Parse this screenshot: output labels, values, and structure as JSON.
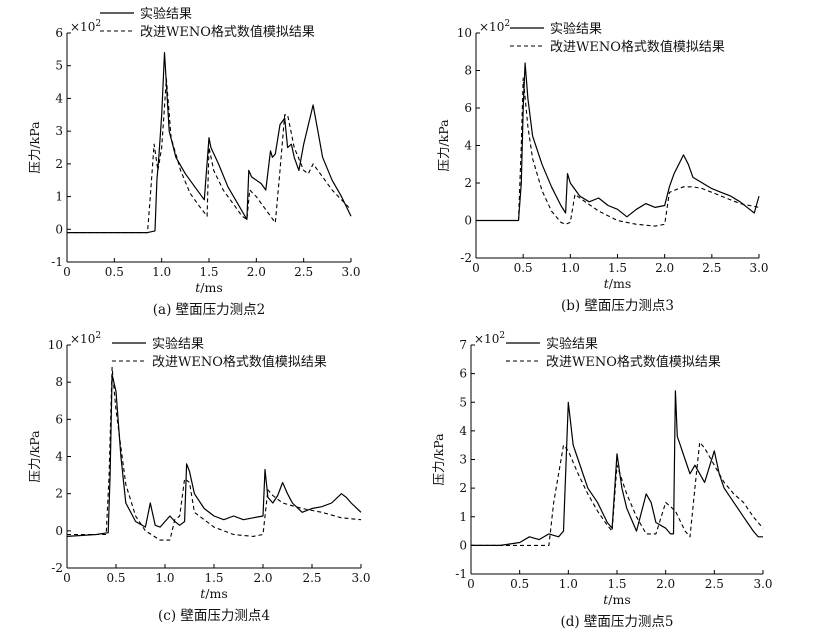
{
  "figure": {
    "legend": {
      "experiment": "实验结果",
      "simulation": "改进WENO格式数值模拟结果"
    },
    "y_multiplier": "×10",
    "y_multiplier_exp": "2"
  },
  "chart_data": [
    {
      "type": "line",
      "caption": "(a) 壁面压力测点2",
      "xlabel": "t/ms",
      "ylabel": "压力/kPa",
      "xlim": [
        0,
        3.0
      ],
      "ylim": [
        -1,
        6
      ],
      "xticks": [
        "0",
        "0.5",
        "1.0",
        "1.5",
        "2.0",
        "2.5",
        "3.0"
      ],
      "yticks": [
        "-1",
        "0",
        "1",
        "2",
        "3",
        "4",
        "5",
        "6"
      ],
      "legend_placement": "top",
      "series": [
        {
          "name": "实验结果",
          "style": "solid",
          "x": [
            0,
            0.3,
            0.6,
            0.85,
            0.93,
            0.95,
            0.97,
            1.0,
            1.03,
            1.08,
            1.15,
            1.25,
            1.35,
            1.45,
            1.5,
            1.52,
            1.6,
            1.7,
            1.8,
            1.9,
            1.92,
            1.95,
            2.05,
            2.1,
            2.15,
            2.17,
            2.2,
            2.25,
            2.3,
            2.33,
            2.37,
            2.4,
            2.45,
            2.5,
            2.55,
            2.6,
            2.65,
            2.7,
            2.8,
            2.9,
            3.0
          ],
          "y": [
            -0.1,
            -0.1,
            -0.1,
            -0.1,
            -0.05,
            1.5,
            2.2,
            3.5,
            5.4,
            3.0,
            2.2,
            1.7,
            1.3,
            0.9,
            2.8,
            2.5,
            2.0,
            1.3,
            0.8,
            0.3,
            1.8,
            1.6,
            1.4,
            1.2,
            2.4,
            2.2,
            2.3,
            3.2,
            3.4,
            2.5,
            2.6,
            2.2,
            1.8,
            2.6,
            3.2,
            3.8,
            3.0,
            2.2,
            1.5,
            1.0,
            0.4
          ]
        },
        {
          "name": "改进WENO格式数值模拟结果",
          "style": "dashed",
          "x": [
            0,
            0.85,
            0.88,
            0.92,
            0.96,
            1.0,
            1.05,
            1.1,
            1.2,
            1.3,
            1.4,
            1.48,
            1.5,
            1.55,
            1.65,
            1.75,
            1.85,
            1.9,
            1.93,
            2.0,
            2.1,
            2.2,
            2.25,
            2.3,
            2.33,
            2.4,
            2.5,
            2.55,
            2.6,
            2.7,
            2.8,
            2.9,
            3.0
          ],
          "y": [
            -0.1,
            -0.1,
            1.0,
            2.6,
            1.8,
            2.5,
            4.6,
            2.8,
            1.8,
            1.1,
            0.7,
            0.4,
            2.5,
            1.8,
            1.2,
            0.8,
            0.4,
            0.3,
            1.2,
            1.0,
            0.6,
            0.2,
            1.8,
            3.5,
            3.5,
            2.5,
            1.8,
            1.7,
            2.0,
            1.6,
            1.2,
            0.9,
            0.6
          ]
        }
      ]
    },
    {
      "type": "line",
      "caption": "(b) 壁面压力测点3",
      "xlabel": "t/ms",
      "ylabel": "压力/kPa",
      "xlim": [
        0,
        3.0
      ],
      "ylim": [
        -2,
        10
      ],
      "xticks": [
        "0",
        "0.5",
        "1.0",
        "1.5",
        "2.0",
        "2.5",
        "3.0"
      ],
      "yticks": [
        "-2",
        "0",
        "2",
        "4",
        "6",
        "8",
        "10"
      ],
      "legend_placement": "top",
      "series": [
        {
          "name": "实验结果",
          "style": "solid",
          "x": [
            0,
            0.3,
            0.45,
            0.48,
            0.5,
            0.52,
            0.55,
            0.6,
            0.7,
            0.8,
            0.9,
            0.95,
            0.97,
            1.0,
            1.1,
            1.2,
            1.3,
            1.4,
            1.5,
            1.6,
            1.7,
            1.8,
            1.9,
            2.0,
            2.05,
            2.1,
            2.15,
            2.2,
            2.25,
            2.3,
            2.4,
            2.5,
            2.6,
            2.7,
            2.8,
            2.9,
            2.95,
            3.0
          ],
          "y": [
            0.0,
            0.0,
            0.0,
            2.0,
            6.0,
            8.4,
            6.5,
            4.5,
            3.0,
            1.8,
            0.8,
            0.4,
            2.5,
            2.0,
            1.3,
            1.0,
            1.2,
            0.8,
            0.6,
            0.2,
            0.6,
            0.9,
            0.7,
            0.8,
            1.8,
            2.5,
            3.0,
            3.5,
            3.0,
            2.3,
            2.0,
            1.7,
            1.5,
            1.3,
            1.0,
            0.6,
            0.4,
            1.3
          ]
        },
        {
          "name": "改进WENO格式数值模拟结果",
          "style": "dashed",
          "x": [
            0,
            0.45,
            0.48,
            0.5,
            0.55,
            0.6,
            0.7,
            0.8,
            0.9,
            0.95,
            1.0,
            1.05,
            1.1,
            1.3,
            1.5,
            1.7,
            1.9,
            2.0,
            2.05,
            2.15,
            2.2,
            2.3,
            2.4,
            2.6,
            2.8,
            3.0
          ],
          "y": [
            0.0,
            0.0,
            4.0,
            7.6,
            5.0,
            3.3,
            1.6,
            0.5,
            -0.1,
            -0.2,
            -0.1,
            1.4,
            1.2,
            0.5,
            0.0,
            -0.2,
            -0.3,
            -0.2,
            1.5,
            1.7,
            1.8,
            1.8,
            1.7,
            1.3,
            0.9,
            0.7
          ]
        }
      ]
    },
    {
      "type": "line",
      "caption": "(c) 壁面压力测点4",
      "xlabel": "t/ms",
      "ylabel": "压力/kPa",
      "xlim": [
        0,
        3.0
      ],
      "ylim": [
        -2,
        10
      ],
      "xticks": [
        "0",
        "0.5",
        "1.0",
        "1.5",
        "2.0",
        "2.5",
        "3.0"
      ],
      "yticks": [
        "-2",
        "0",
        "2",
        "4",
        "6",
        "8",
        "10"
      ],
      "legend_placement": "top",
      "series": [
        {
          "name": "实验结果",
          "style": "solid",
          "x": [
            0,
            0.3,
            0.42,
            0.44,
            0.46,
            0.5,
            0.55,
            0.6,
            0.7,
            0.8,
            0.85,
            0.9,
            0.95,
            1.05,
            1.1,
            1.15,
            1.2,
            1.22,
            1.25,
            1.3,
            1.4,
            1.5,
            1.6,
            1.7,
            1.8,
            1.9,
            2.0,
            2.02,
            2.05,
            2.1,
            2.15,
            2.2,
            2.25,
            2.3,
            2.4,
            2.5,
            2.6,
            2.7,
            2.8,
            2.85,
            2.9,
            3.0
          ],
          "y": [
            -0.3,
            -0.2,
            -0.1,
            3.0,
            8.4,
            7.5,
            4.0,
            1.5,
            0.5,
            0.2,
            1.5,
            0.3,
            0.2,
            0.8,
            0.5,
            0.3,
            0.5,
            3.6,
            3.2,
            2.0,
            1.2,
            0.8,
            0.6,
            0.8,
            0.6,
            0.7,
            0.8,
            3.3,
            1.8,
            1.5,
            1.9,
            2.6,
            2.0,
            1.5,
            1.0,
            1.2,
            1.3,
            1.5,
            2.0,
            1.8,
            1.5,
            1.0
          ]
        },
        {
          "name": "改进WENO格式数值模拟结果",
          "style": "dashed",
          "x": [
            0,
            0.4,
            0.43,
            0.46,
            0.5,
            0.6,
            0.7,
            0.8,
            0.95,
            1.05,
            1.1,
            1.15,
            1.2,
            1.25,
            1.3,
            1.5,
            1.7,
            1.9,
            2.0,
            2.05,
            2.1,
            2.2,
            2.4,
            2.6,
            2.8,
            3.0
          ],
          "y": [
            -0.2,
            -0.2,
            3.0,
            8.8,
            6.5,
            2.5,
            0.8,
            0.0,
            -0.5,
            -0.5,
            0.6,
            0.8,
            2.8,
            2.6,
            1.0,
            0.2,
            -0.2,
            -0.3,
            -0.2,
            2.2,
            1.9,
            1.5,
            1.2,
            1.0,
            0.7,
            0.6
          ]
        }
      ]
    },
    {
      "type": "line",
      "caption": "(d) 壁面压力测点5",
      "xlabel": "t/ms",
      "ylabel": "压力/kPa",
      "xlim": [
        0,
        3.0
      ],
      "ylim": [
        -1,
        7
      ],
      "xticks": [
        "0",
        "0.5",
        "1.0",
        "1.5",
        "2.0",
        "2.5",
        "3.0"
      ],
      "yticks": [
        "-1",
        "0",
        "1",
        "2",
        "3",
        "4",
        "5",
        "6",
        "7"
      ],
      "legend_placement": "top",
      "series": [
        {
          "name": "实验结果",
          "style": "solid",
          "x": [
            0,
            0.3,
            0.5,
            0.6,
            0.7,
            0.8,
            0.9,
            0.95,
            1.0,
            1.05,
            1.1,
            1.2,
            1.3,
            1.4,
            1.45,
            1.5,
            1.55,
            1.6,
            1.7,
            1.8,
            1.85,
            1.9,
            2.0,
            2.05,
            2.08,
            2.1,
            2.12,
            2.15,
            2.2,
            2.25,
            2.3,
            2.4,
            2.5,
            2.55,
            2.6,
            2.7,
            2.8,
            2.9,
            2.95,
            3.0
          ],
          "y": [
            0.0,
            0.0,
            0.1,
            0.3,
            0.2,
            0.4,
            0.3,
            0.5,
            5.0,
            3.5,
            3.0,
            2.0,
            1.5,
            0.8,
            0.6,
            3.2,
            2.0,
            1.3,
            0.5,
            1.8,
            1.5,
            0.8,
            0.6,
            0.4,
            0.4,
            5.4,
            3.8,
            3.5,
            3.0,
            2.5,
            2.8,
            2.2,
            3.3,
            2.5,
            2.0,
            1.5,
            1.0,
            0.5,
            0.3,
            0.3
          ]
        },
        {
          "name": "改进WENO格式数值模拟结果",
          "style": "dashed",
          "x": [
            0,
            0.8,
            0.85,
            0.9,
            0.95,
            1.0,
            1.1,
            1.2,
            1.3,
            1.4,
            1.45,
            1.5,
            1.6,
            1.7,
            1.8,
            1.9,
            2.0,
            2.1,
            2.2,
            2.25,
            2.3,
            2.35,
            2.4,
            2.5,
            2.6,
            2.7,
            2.8,
            2.9,
            3.0
          ],
          "y": [
            0.0,
            0.0,
            1.5,
            2.5,
            3.5,
            3.3,
            2.5,
            1.8,
            1.2,
            0.7,
            0.5,
            2.8,
            1.8,
            1.0,
            0.4,
            0.4,
            1.5,
            1.2,
            0.5,
            0.3,
            2.0,
            3.6,
            3.4,
            2.8,
            2.2,
            1.8,
            1.5,
            1.0,
            0.6
          ]
        }
      ]
    }
  ]
}
